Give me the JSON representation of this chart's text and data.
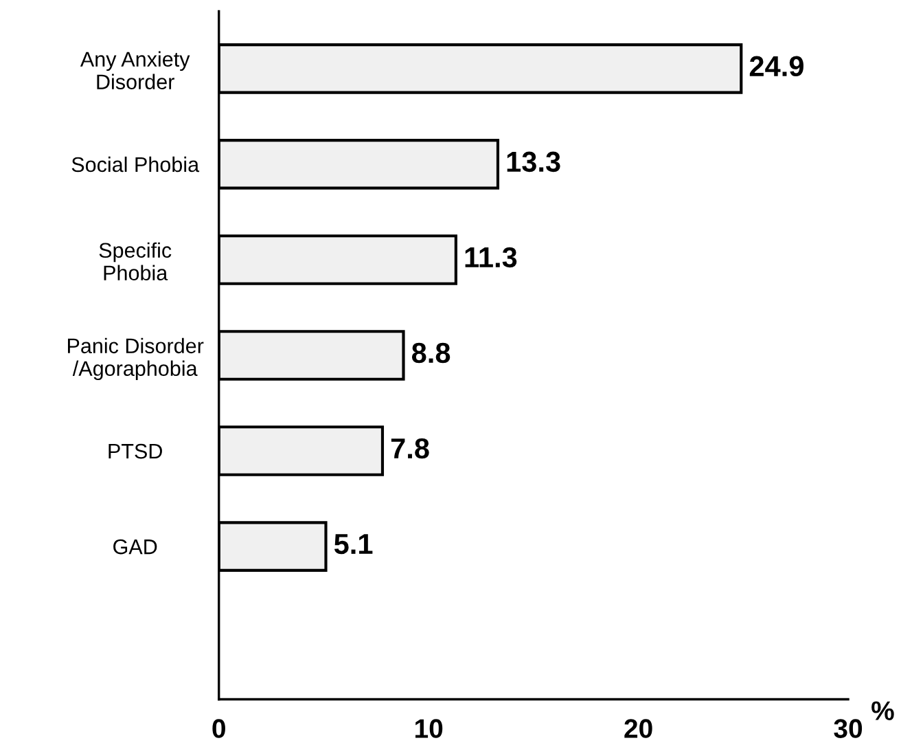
{
  "chart_data": {
    "type": "bar",
    "orientation": "horizontal",
    "categories": [
      "Any Anxiety\nDisorder",
      "Social Phobia",
      "Specific\nPhobia",
      "Panic Disorder\n/Agoraphobia",
      "PTSD",
      "GAD"
    ],
    "values": [
      24.9,
      13.3,
      11.3,
      8.8,
      7.8,
      5.1
    ],
    "color": "#f0f0f0",
    "xlim": [
      0,
      30
    ],
    "xticks": [
      0,
      10,
      20,
      30
    ],
    "xlabel": "%",
    "data_labels": true
  }
}
